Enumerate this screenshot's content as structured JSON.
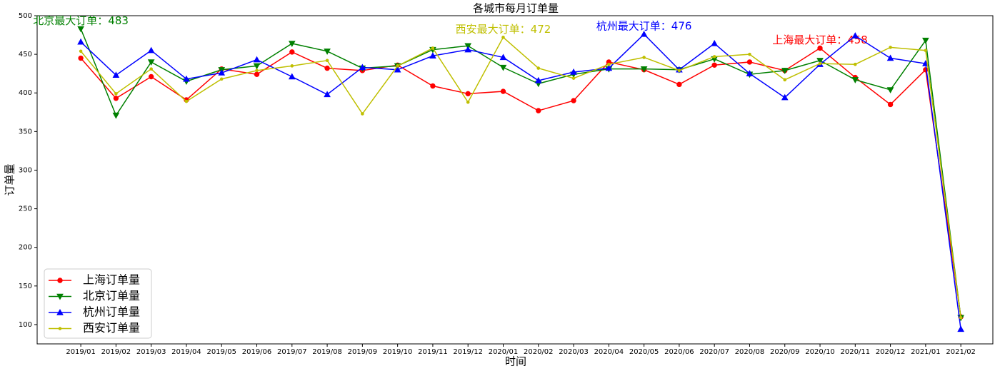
{
  "chart_data": {
    "type": "line",
    "title": "各城市每月订单量",
    "x_label": "时间",
    "y_label": "订单量",
    "categories": [
      "2019/01",
      "2019/02",
      "2019/03",
      "2019/04",
      "2019/05",
      "2019/06",
      "2019/07",
      "2019/08",
      "2019/09",
      "2019/10",
      "2019/11",
      "2019/12",
      "2020/01",
      "2020/02",
      "2020/03",
      "2020/04",
      "2020/05",
      "2020/06",
      "2020/07",
      "2020/08",
      "2020/09",
      "2020/10",
      "2020/11",
      "2020/12",
      "2021/01",
      "2021/02"
    ],
    "ylim": [
      75,
      500
    ],
    "yticks": [
      100,
      150,
      200,
      250,
      300,
      350,
      400,
      450,
      500
    ],
    "legend": "lower left",
    "series": [
      {
        "name": "上海订单量",
        "color": "#ff0000",
        "marker": "circle",
        "annotation": "上海最大订单：458",
        "values": [
          445,
          393,
          421,
          391,
          431,
          424,
          453,
          432,
          429,
          436,
          409,
          399,
          402,
          377,
          390,
          440,
          430,
          411,
          436,
          440,
          429,
          458,
          420,
          385,
          430,
          110
        ]
      },
      {
        "name": "北京订单量",
        "color": "#008000",
        "marker": "triangle-down",
        "annotation": "北京最大订单：483",
        "values": [
          483,
          371,
          440,
          415,
          430,
          435,
          464,
          454,
          432,
          435,
          456,
          461,
          433,
          412,
          424,
          431,
          431,
          430,
          444,
          424,
          429,
          442,
          417,
          404,
          468,
          109
        ]
      },
      {
        "name": "杭州订单量",
        "color": "#0000ff",
        "marker": "triangle-up",
        "annotation": "杭州最大订单：476",
        "values": [
          466,
          423,
          455,
          418,
          426,
          443,
          421,
          398,
          433,
          430,
          448,
          456,
          446,
          416,
          427,
          432,
          476,
          430,
          464,
          425,
          394,
          437,
          474,
          445,
          438,
          94
        ]
      },
      {
        "name": "西安订单量",
        "color": "#bfbf00",
        "marker": "point",
        "annotation": "西安最大订单：472",
        "values": [
          454,
          399,
          431,
          389,
          418,
          429,
          435,
          442,
          373,
          435,
          458,
          388,
          472,
          432,
          419,
          437,
          446,
          429,
          447,
          450,
          417,
          438,
          437,
          459,
          455,
          109
        ]
      }
    ]
  }
}
